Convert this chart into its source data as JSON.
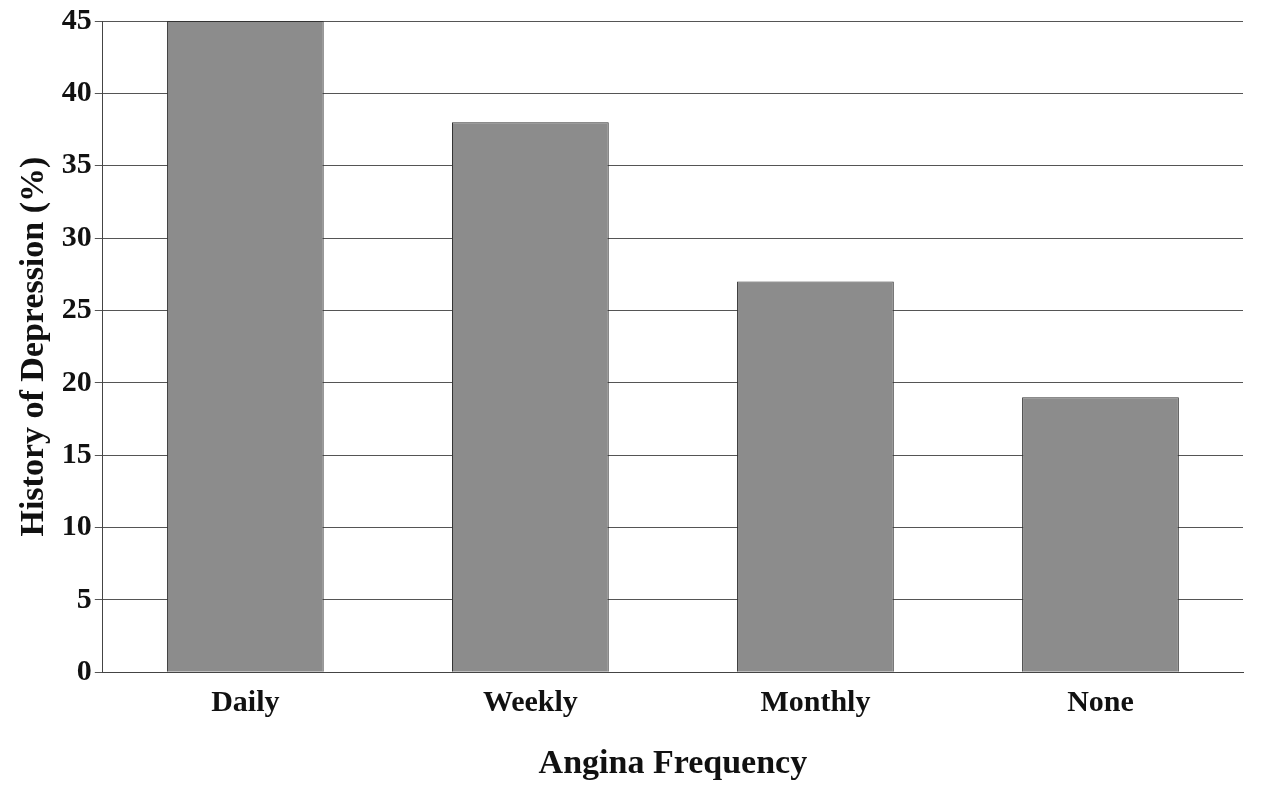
{
  "chart_data": {
    "type": "bar",
    "xlabel": "Angina Frequency",
    "ylabel": "History of Depression (%)",
    "categories": [
      "Daily",
      "Weekly",
      "Monthly",
      "None"
    ],
    "values": [
      45,
      38,
      27,
      19
    ],
    "color": "#8c8c8c",
    "ylim": [
      0,
      45
    ],
    "yticks": [
      0,
      5,
      10,
      15,
      20,
      25,
      30,
      35,
      40,
      45
    ],
    "grid": "y",
    "legend": false
  }
}
